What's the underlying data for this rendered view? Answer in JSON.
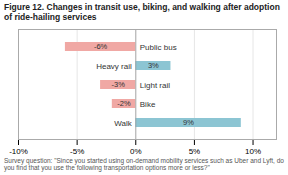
{
  "chart_data": {
    "type": "bar",
    "orientation": "horizontal",
    "title": "Figure 12. Changes in transit use, biking, and walking after adoption of ride-hailing services",
    "caption": "Survey question: \"Since you started using on-demand mobility services such as Uber and Lyft, do you find that you use the following transportation options more or less?\"",
    "categories": [
      "Public bus",
      "Heavy rail",
      "Light rail",
      "Bike",
      "Walk"
    ],
    "values": [
      -6,
      3,
      -3,
      -2,
      9
    ],
    "value_labels": [
      "-6%",
      "3%",
      "-3%",
      "-2%",
      "9%"
    ],
    "colors": [
      "#f0a8a4",
      "#8cc5d3",
      "#f0a8a4",
      "#f0a8a4",
      "#8cc5d3"
    ],
    "data_labels": true,
    "xlim": [
      -10,
      12
    ],
    "xticks": [
      {
        "value": -10,
        "label": "-10%"
      },
      {
        "value": -5,
        "label": "-5%"
      },
      {
        "value": 0,
        "label": "0%"
      },
      {
        "value": 5,
        "label": "5%"
      },
      {
        "value": 10,
        "label": "10%"
      }
    ],
    "grid": true,
    "tick_labels": "x"
  }
}
